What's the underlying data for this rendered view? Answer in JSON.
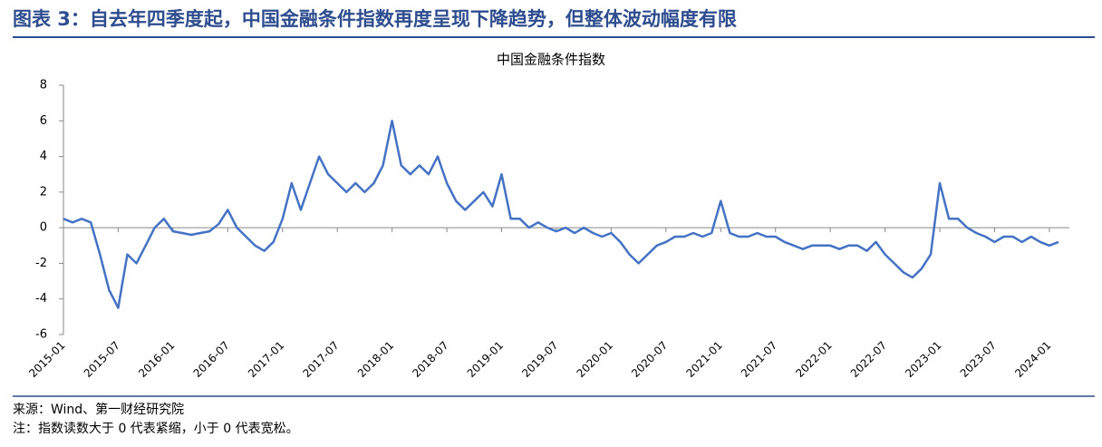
{
  "header": {
    "title": "图表 3：自去年四季度起，中国金融条件指数再度呈现下降趋势，但整体波动幅度有限"
  },
  "chart_data": {
    "type": "line",
    "title": "中国金融条件指数",
    "categories": [
      "2015-01",
      null,
      null,
      null,
      null,
      null,
      "2015-07",
      null,
      null,
      null,
      null,
      null,
      "2016-01",
      null,
      null,
      null,
      null,
      null,
      "2016-07",
      null,
      null,
      null,
      null,
      null,
      "2017-01",
      null,
      null,
      null,
      null,
      null,
      "2017-07",
      null,
      null,
      null,
      null,
      null,
      "2018-01",
      null,
      null,
      null,
      null,
      null,
      "2018-07",
      null,
      null,
      null,
      null,
      null,
      "2019-01",
      null,
      null,
      null,
      null,
      null,
      "2019-07",
      null,
      null,
      null,
      null,
      null,
      "2020-01",
      null,
      null,
      null,
      null,
      null,
      "2020-07",
      null,
      null,
      null,
      null,
      null,
      "2021-01",
      null,
      null,
      null,
      null,
      null,
      "2021-07",
      null,
      null,
      null,
      null,
      null,
      "2022-01",
      null,
      null,
      null,
      null,
      null,
      "2022-07",
      null,
      null,
      null,
      null,
      null,
      "2023-01",
      null,
      null,
      null,
      null,
      null,
      "2023-07",
      null,
      null,
      null,
      null,
      null,
      "2024-01",
      null
    ],
    "values": [
      0.5,
      0.3,
      0.5,
      0.3,
      -1.5,
      -3.5,
      -4.5,
      -1.5,
      -2.0,
      -1.0,
      0,
      0.5,
      -0.2,
      -0.3,
      -0.4,
      -0.3,
      -0.2,
      0.2,
      1.0,
      0,
      -0.5,
      -1.0,
      -1.3,
      -0.8,
      0.5,
      2.5,
      1.0,
      2.5,
      4.0,
      3.0,
      2.5,
      2.0,
      2.5,
      2.0,
      2.5,
      3.5,
      6.0,
      3.5,
      3.0,
      3.5,
      3.0,
      4.0,
      2.5,
      1.5,
      1.0,
      1.5,
      2.0,
      1.2,
      3.0,
      0.5,
      0.5,
      0,
      0.3,
      0,
      -0.2,
      0,
      -0.3,
      0,
      -0.3,
      -0.5,
      -0.3,
      -0.8,
      -1.5,
      -2.0,
      -1.5,
      -1.0,
      -0.8,
      -0.5,
      -0.5,
      -0.3,
      -0.5,
      -0.3,
      1.5,
      -0.3,
      -0.5,
      -0.5,
      -0.3,
      -0.5,
      -0.5,
      -0.8,
      -1.0,
      -1.2,
      -1.0,
      -1.0,
      -1.0,
      -1.2,
      -1.0,
      -1.0,
      -1.3,
      -0.8,
      -1.5,
      -2.0,
      -2.5,
      -2.8,
      -2.3,
      -1.5,
      2.5,
      0.5,
      0.5,
      0,
      -0.3,
      -0.5,
      -0.8,
      -0.5,
      -0.5,
      -0.8,
      -0.5,
      -0.8,
      -1.0,
      -0.8
    ],
    "color": "#4472c4",
    "ylim": [
      -6,
      8
    ],
    "yticks": [
      -6,
      -4,
      -2,
      0,
      2,
      4,
      6,
      8
    ]
  },
  "footer": {
    "source": "来源：Wind、第一财经研究院",
    "note": "注：指数读数大于 0 代表紧缩，小于 0 代表宽松。"
  }
}
